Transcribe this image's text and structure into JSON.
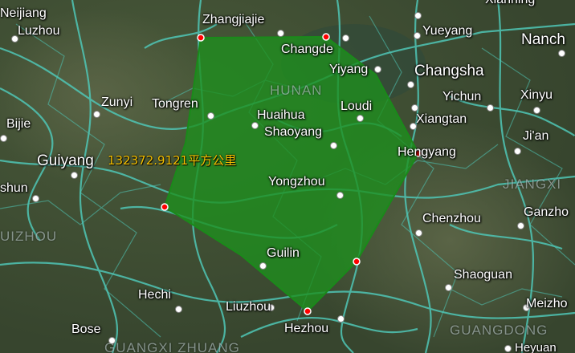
{
  "cities": [
    {
      "id": "neijiang",
      "label": "Neijiang"
    },
    {
      "id": "luzhou",
      "label": "Luzhou"
    },
    {
      "id": "zhangjiajie",
      "label": "Zhangjiajie"
    },
    {
      "id": "changde",
      "label": "Changde"
    },
    {
      "id": "yiyang",
      "label": "Yiyang"
    },
    {
      "id": "yueyang",
      "label": "Yueyang"
    },
    {
      "id": "xianning",
      "label": "Xianning"
    },
    {
      "id": "nanchang",
      "label": "Nanch"
    },
    {
      "id": "changsha",
      "label": "Changsha"
    },
    {
      "id": "zunyi",
      "label": "Zunyi"
    },
    {
      "id": "tongren",
      "label": "Tongren"
    },
    {
      "id": "huaihua",
      "label": "Huaihua"
    },
    {
      "id": "shaoyang",
      "label": "Shaoyang"
    },
    {
      "id": "loudi",
      "label": "Loudi"
    },
    {
      "id": "yichun",
      "label": "Yichun"
    },
    {
      "id": "xinyu",
      "label": "Xinyu"
    },
    {
      "id": "xiangtan",
      "label": "Xiangtan"
    },
    {
      "id": "bijie",
      "label": "Bijie"
    },
    {
      "id": "guiyang",
      "label": "Guiyang"
    },
    {
      "id": "hengyang",
      "label": "Hengyang"
    },
    {
      "id": "jian",
      "label": "Ji'an"
    },
    {
      "id": "anshun",
      "label": "shun"
    },
    {
      "id": "yongzhou",
      "label": "Yongzhou"
    },
    {
      "id": "chenzhou",
      "label": "Chenzhou"
    },
    {
      "id": "ganzhou",
      "label": "Ganzho"
    },
    {
      "id": "guilin",
      "label": "Guilin"
    },
    {
      "id": "shaoguan",
      "label": "Shaoguan"
    },
    {
      "id": "hechi",
      "label": "Hechi"
    },
    {
      "id": "liuzhou",
      "label": "Liuzhou"
    },
    {
      "id": "meizhou",
      "label": "Meizho"
    },
    {
      "id": "bose",
      "label": "Bose"
    },
    {
      "id": "hezhou",
      "label": "Hezhou"
    },
    {
      "id": "heyuan",
      "label": "Heyuan"
    }
  ],
  "regions": {
    "hunan": "HUNAN",
    "guizhou": "UIZHOU",
    "jiangxi": "JIANGXI",
    "guangdong": "GUANGDONG",
    "guangxi": "GUANGXI ZHUANG"
  },
  "measurement": {
    "label": "132372.9121平方公里"
  },
  "polygon": {
    "fill_color": "#1e8f1e",
    "stroke_color": "#1a8a1a",
    "vertex_color": "#ff0000"
  }
}
